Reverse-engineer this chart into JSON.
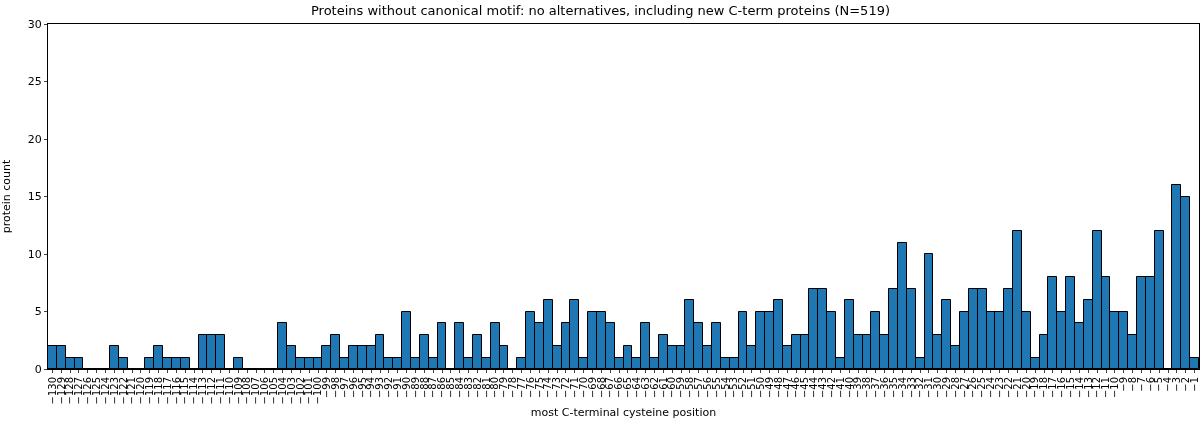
{
  "chart_data": {
    "type": "bar",
    "title": "Proteins without canonical motif: no alternatives, including new C-term proteins (N=519)",
    "xlabel": "most C-terminal cysteine position",
    "ylabel": "protein count",
    "categories": [
      "−130",
      "−129",
      "−128",
      "−127",
      "−126",
      "−125",
      "−124",
      "−123",
      "−122",
      "−121",
      "−120",
      "−119",
      "−118",
      "−117",
      "−116",
      "−115",
      "−114",
      "−113",
      "−112",
      "−111",
      "−110",
      "−109",
      "−108",
      "−107",
      "−106",
      "−105",
      "−104",
      "−103",
      "−102",
      "−101",
      "−100",
      "−99",
      "−98",
      "−97",
      "−96",
      "−95",
      "−94",
      "−93",
      "−92",
      "−91",
      "−90",
      "−89",
      "−88",
      "−87",
      "−86",
      "−85",
      "−84",
      "−83",
      "−82",
      "−81",
      "−80",
      "−79",
      "−78",
      "−77",
      "−76",
      "−75",
      "−74",
      "−73",
      "−72",
      "−71",
      "−70",
      "−69",
      "−68",
      "−67",
      "−66",
      "−65",
      "−64",
      "−63",
      "−62",
      "−61",
      "−60",
      "−59",
      "−58",
      "−57",
      "−56",
      "−55",
      "−54",
      "−53",
      "−52",
      "−51",
      "−50",
      "−49",
      "−48",
      "−47",
      "−46",
      "−45",
      "−44",
      "−43",
      "−42",
      "−41",
      "−40",
      "−39",
      "−38",
      "−37",
      "−36",
      "−35",
      "−34",
      "−33",
      "−32",
      "−31",
      "−30",
      "−29",
      "−28",
      "−27",
      "−26",
      "−25",
      "−24",
      "−23",
      "−22",
      "−21",
      "−20",
      "−19",
      "−18",
      "−17",
      "−16",
      "−15",
      "−14",
      "−13",
      "−12",
      "−11",
      "−10",
      "−9",
      "−8",
      "−7",
      "−6",
      "−5",
      "−4",
      "−3",
      "−2",
      "−1"
    ],
    "values": [
      2,
      2,
      1,
      1,
      0,
      0,
      0,
      2,
      1,
      0,
      0,
      1,
      2,
      1,
      1,
      1,
      0,
      3,
      3,
      3,
      0,
      1,
      0,
      0,
      0,
      0,
      4,
      2,
      1,
      1,
      1,
      2,
      3,
      1,
      2,
      2,
      2,
      3,
      1,
      1,
      5,
      1,
      3,
      1,
      4,
      0,
      4,
      1,
      3,
      1,
      4,
      2,
      0,
      1,
      5,
      4,
      6,
      2,
      4,
      6,
      1,
      5,
      5,
      4,
      1,
      2,
      1,
      4,
      1,
      3,
      2,
      2,
      6,
      4,
      2,
      4,
      1,
      1,
      5,
      2,
      5,
      5,
      6,
      2,
      3,
      3,
      7,
      7,
      5,
      1,
      6,
      3,
      3,
      5,
      3,
      7,
      11,
      7,
      1,
      10,
      3,
      6,
      2,
      5,
      7,
      7,
      5,
      5,
      7,
      12,
      5,
      1,
      3,
      8,
      5,
      8,
      4,
      6,
      12,
      8,
      5,
      5,
      3,
      8,
      8,
      12,
      0,
      16,
      15,
      1
    ],
    "color": "#1f77b4",
    "ylim": [
      0,
      30
    ],
    "yticks": [
      0,
      5,
      10,
      15,
      20,
      25,
      30
    ]
  }
}
